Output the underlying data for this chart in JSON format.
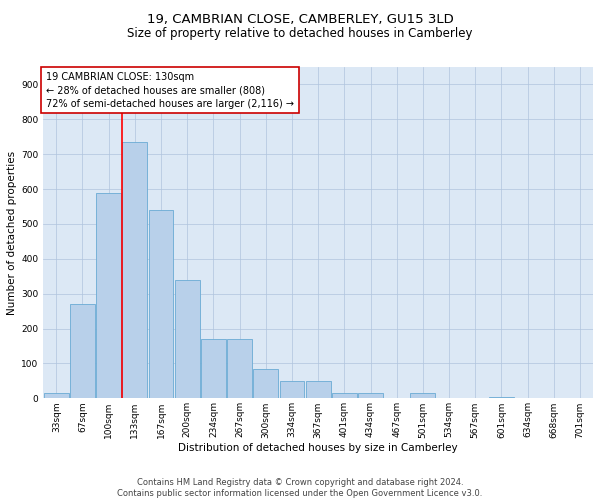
{
  "title": "19, CAMBRIAN CLOSE, CAMBERLEY, GU15 3LD",
  "subtitle": "Size of property relative to detached houses in Camberley",
  "xlabel": "Distribution of detached houses by size in Camberley",
  "ylabel": "Number of detached properties",
  "footer_line1": "Contains HM Land Registry data © Crown copyright and database right 2024.",
  "footer_line2": "Contains public sector information licensed under the Open Government Licence v3.0.",
  "categories": [
    "33sqm",
    "67sqm",
    "100sqm",
    "133sqm",
    "167sqm",
    "200sqm",
    "234sqm",
    "267sqm",
    "300sqm",
    "334sqm",
    "367sqm",
    "401sqm",
    "434sqm",
    "467sqm",
    "501sqm",
    "534sqm",
    "567sqm",
    "601sqm",
    "634sqm",
    "668sqm",
    "701sqm"
  ],
  "values": [
    15,
    270,
    590,
    735,
    540,
    340,
    170,
    170,
    85,
    50,
    50,
    15,
    15,
    0,
    15,
    0,
    0,
    5,
    0,
    0,
    0
  ],
  "bar_color": "#b8d0ea",
  "bar_edge_color": "#6aaad4",
  "red_line_index": 3,
  "annotation_text_line1": "19 CAMBRIAN CLOSE: 130sqm",
  "annotation_text_line2": "← 28% of detached houses are smaller (808)",
  "annotation_text_line3": "72% of semi-detached houses are larger (2,116) →",
  "annotation_box_color": "#ffffff",
  "annotation_box_edge": "#cc0000",
  "ylim": [
    0,
    950
  ],
  "yticks": [
    0,
    100,
    200,
    300,
    400,
    500,
    600,
    700,
    800,
    900
  ],
  "background_color": "#ffffff",
  "plot_bg_color": "#dce8f5",
  "grid_color": "#b0c4de",
  "title_fontsize": 9.5,
  "subtitle_fontsize": 8.5,
  "axis_label_fontsize": 7.5,
  "tick_fontsize": 6.5,
  "annotation_fontsize": 7.0,
  "footer_fontsize": 6.0
}
